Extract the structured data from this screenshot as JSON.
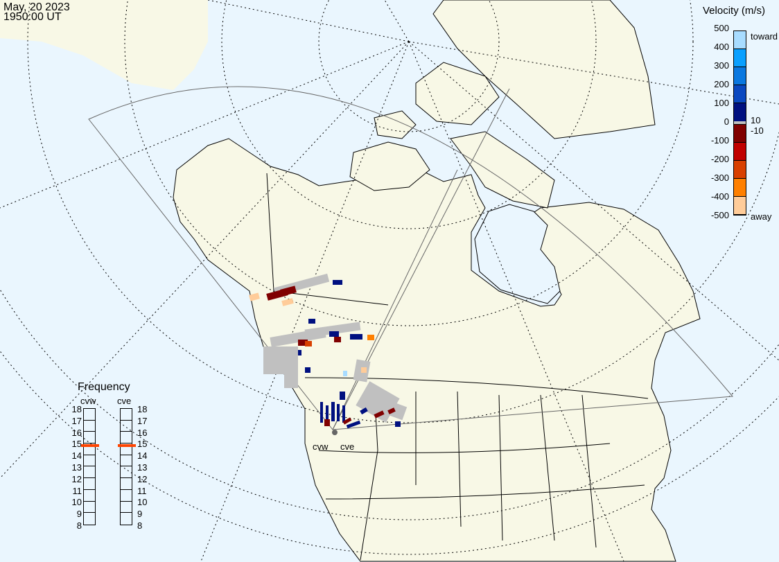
{
  "header": {
    "date": "May, 20 2023",
    "time": "1950:00 UT"
  },
  "velocity_legend": {
    "title": "Velocity (m/s)",
    "ticks": [
      "500",
      "400",
      "300",
      "200",
      "100",
      "0",
      "-100",
      "-200",
      "-300",
      "-400",
      "-500"
    ],
    "toward_label": "toward",
    "away_label": "away",
    "gs_upper": "10",
    "gs_lower": "-10",
    "colors": [
      "#a8dcff",
      "#0aa0ff",
      "#0a78e0",
      "#0a48c0",
      "#001080",
      "#800000",
      "#c00000",
      "#d84000",
      "#ff8000",
      "#ffcc99"
    ],
    "ground_scatter_color": "#c0c0c0"
  },
  "frequency_panel": {
    "title": "Frequency",
    "radars": [
      {
        "name": "cvw",
        "value_mhz": 14.8
      },
      {
        "name": "cve",
        "value_mhz": 14.8
      }
    ],
    "ticks": [
      "18",
      "17",
      "16",
      "15",
      "14",
      "13",
      "12",
      "11",
      "10",
      "9",
      "8"
    ],
    "marker_color": "#ff4400"
  },
  "radar_labels": [
    "cvw",
    "cve"
  ],
  "colors": {
    "ocean": "#eaf6fe",
    "land": "#f8f8e6"
  }
}
